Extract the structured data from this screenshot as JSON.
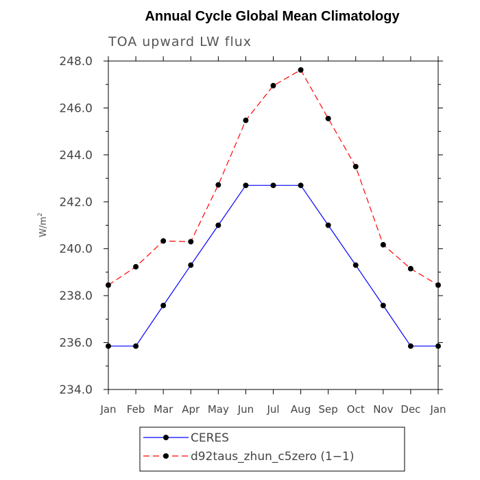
{
  "chart_data": {
    "type": "line",
    "title": "Annual Cycle Global Mean Climatology",
    "subtitle": "TOA upward LW flux",
    "ylabel": "W/m",
    "ylabel_sup": "2",
    "categories": [
      "Jan",
      "Feb",
      "Mar",
      "Apr",
      "May",
      "Jun",
      "Jul",
      "Aug",
      "Sep",
      "Oct",
      "Nov",
      "Dec",
      "Jan"
    ],
    "ylim": [
      234.0,
      248.0
    ],
    "yticks": [
      "234.0",
      "236.0",
      "238.0",
      "240.0",
      "242.0",
      "244.0",
      "246.0",
      "248.0"
    ],
    "series": [
      {
        "name": "CERES",
        "color": "#0000ff",
        "dash": "solid",
        "values": [
          235.85,
          235.85,
          237.58,
          239.3,
          241.0,
          242.7,
          242.7,
          242.7,
          241.0,
          239.3,
          237.58,
          235.85,
          235.85
        ]
      },
      {
        "name": "d92taus_zhun_c5zero (1−1)",
        "color": "#ff0000",
        "dash": "dashed",
        "values": [
          238.45,
          239.23,
          240.33,
          240.3,
          242.72,
          245.47,
          246.95,
          247.62,
          245.55,
          243.5,
          240.17,
          239.15,
          238.45
        ]
      }
    ],
    "legend_position": "bottom"
  }
}
